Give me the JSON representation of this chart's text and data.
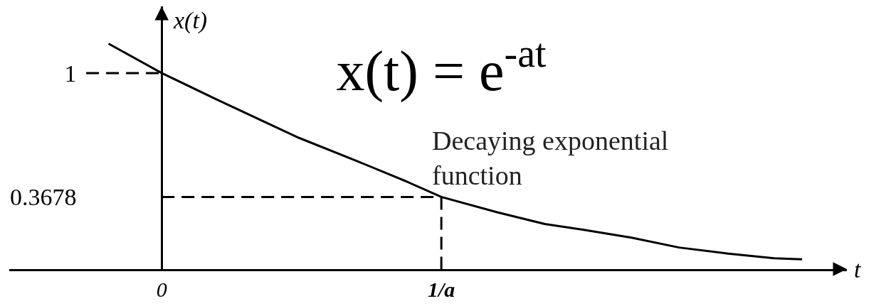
{
  "chart_data": {
    "type": "line",
    "title": "x(t) = e$^{-at}$",
    "xlabel": "t",
    "ylabel": "x(t)",
    "annotations": [
      "Decaying exponential\nfunction"
    ],
    "xlim": [
      -0.545,
      2.45
    ],
    "ylim": [
      0,
      1.34
    ],
    "xticks": [
      0,
      {
        "value": 1,
        "label": "1/a"
      }
    ],
    "yticks": [
      0.3678,
      1
    ],
    "marker": "none",
    "series": [
      {
        "color": "#000000",
        "line_style": "solid",
        "x": [
          -0.19,
          0,
          0.19,
          0.49,
          0.7,
          0.87,
          1,
          1.2,
          1.37,
          1.51,
          1.68,
          1.85,
          2.02,
          2.19,
          2.29
        ],
        "values": [
          1.15,
          1,
          0.87,
          0.67,
          0.55,
          0.45,
          0.3678,
          0.29,
          0.23,
          0.2,
          0.16,
          0.11,
          0.08,
          0.055,
          0.05
        ]
      },
      {
        "color": "#000000",
        "line_style": "dashed",
        "x": [
          -0.27,
          0
        ],
        "values": [
          1,
          1
        ]
      },
      {
        "color": "#000000",
        "line_style": "dashed",
        "x": [
          0,
          1
        ],
        "values": [
          0.3678,
          0.3678
        ]
      },
      {
        "color": "#000000",
        "line_style": "dashed",
        "x": [
          1,
          1
        ],
        "values": [
          0.3678,
          0
        ]
      }
    ]
  }
}
